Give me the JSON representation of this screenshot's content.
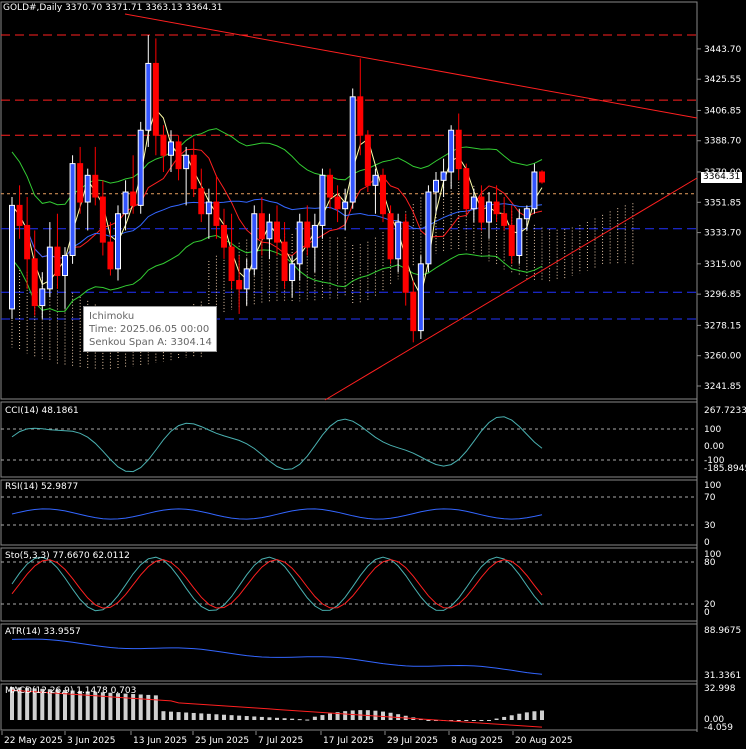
{
  "header": {
    "symbol_tf": "GOLD#,Daily",
    "ohlc": "3370.70 3371.71 3363.13 3364.31"
  },
  "current_price": "3364.31",
  "tooltip": {
    "title": "Ichimoku",
    "time": "Time: 2025.06.05 00:00",
    "value": "Senkou Span A: 3304.14"
  },
  "colors": {
    "background": "#000000",
    "bull_candle": "#ffffff",
    "bear_candle": "#ff0000",
    "up_body": "#3355ff",
    "trendline": "#ff2020",
    "level_red": "#ff2020",
    "level_blue": "#2233ff",
    "cloud": "#e8c8a8",
    "indicator_blue": "#3366ff",
    "indicator_red": "#ff2020",
    "cci": "#4ab0b0",
    "macd_hist": "#d0d0d0"
  },
  "panes": {
    "cci": {
      "label": "CCI(14) 48.1861",
      "scale": [
        "267.7233",
        "100",
        "0.00",
        "-100",
        "-185.8945"
      ]
    },
    "rsi": {
      "label": "RSI(14) 52.9877",
      "scale": [
        "100",
        "70",
        "30",
        "0"
      ]
    },
    "sto": {
      "label": "Sto(5,3,3) 77.6670 62.0112",
      "scale": [
        "100",
        "80",
        "20",
        "0"
      ]
    },
    "atr": {
      "label": "ATR(14) 33.9557",
      "scale": [
        "88.9675",
        "31.3361"
      ]
    },
    "macd": {
      "label": "MACD(12,26,9) 1.1478 0.703",
      "scale": [
        "32.998",
        "0.00",
        "-4.059"
      ]
    }
  },
  "chart_data": {
    "type": "candlestick",
    "price_axis": [
      "3443.70",
      "3425.55",
      "3406.85",
      "3388.70",
      "3370.00",
      "3351.85",
      "3333.70",
      "3315.00",
      "3296.85",
      "3278.15",
      "3260.00",
      "3241.85"
    ],
    "ylim": [
      3241.85,
      3461.0
    ],
    "x_labels": [
      "22 May 2025",
      "3 Jun 2025",
      "13 Jun 2025",
      "25 Jun 2025",
      "7 Jul 2025",
      "17 Jul 2025",
      "29 Jul 2025",
      "8 Aug 2025",
      "20 Aug 2025"
    ],
    "horizontal_levels": [
      {
        "price": 3452.0,
        "color": "red"
      },
      {
        "price": 3413.0,
        "color": "red"
      },
      {
        "price": 3392.0,
        "color": "red"
      },
      {
        "price": 3357.0,
        "color": "orange"
      },
      {
        "price": 3336.0,
        "color": "blue"
      },
      {
        "price": 3298.0,
        "color": "blue"
      },
      {
        "price": 3282.0,
        "color": "blue"
      }
    ],
    "candles": [
      [
        3288,
        3355,
        3282,
        3350
      ],
      [
        3350,
        3362,
        3330,
        3338
      ],
      [
        3338,
        3355,
        3300,
        3318
      ],
      [
        3318,
        3335,
        3284,
        3290
      ],
      [
        3290,
        3310,
        3282,
        3300
      ],
      [
        3300,
        3340,
        3295,
        3325
      ],
      [
        3325,
        3345,
        3300,
        3308
      ],
      [
        3308,
        3325,
        3288,
        3320
      ],
      [
        3320,
        3380,
        3315,
        3375
      ],
      [
        3375,
        3385,
        3345,
        3352
      ],
      [
        3352,
        3372,
        3335,
        3368
      ],
      [
        3368,
        3385,
        3350,
        3355
      ],
      [
        3355,
        3365,
        3320,
        3328
      ],
      [
        3328,
        3340,
        3308,
        3312
      ],
      [
        3312,
        3350,
        3305,
        3345
      ],
      [
        3345,
        3365,
        3335,
        3358
      ],
      [
        3358,
        3380,
        3345,
        3350
      ],
      [
        3350,
        3400,
        3345,
        3395
      ],
      [
        3395,
        3452,
        3385,
        3435
      ],
      [
        3435,
        3450,
        3380,
        3392
      ],
      [
        3392,
        3398,
        3370,
        3380
      ],
      [
        3380,
        3395,
        3370,
        3388
      ],
      [
        3388,
        3392,
        3365,
        3372
      ],
      [
        3372,
        3385,
        3350,
        3380
      ],
      [
        3380,
        3390,
        3355,
        3360
      ],
      [
        3360,
        3372,
        3340,
        3345
      ],
      [
        3345,
        3360,
        3330,
        3352
      ],
      [
        3352,
        3368,
        3330,
        3338
      ],
      [
        3338,
        3348,
        3318,
        3325
      ],
      [
        3325,
        3345,
        3300,
        3305
      ],
      [
        3305,
        3320,
        3285,
        3300
      ],
      [
        3300,
        3318,
        3290,
        3312
      ],
      [
        3312,
        3350,
        3308,
        3345
      ],
      [
        3345,
        3355,
        3320,
        3330
      ],
      [
        3330,
        3345,
        3318,
        3340
      ],
      [
        3340,
        3350,
        3320,
        3328
      ],
      [
        3328,
        3340,
        3300,
        3305
      ],
      [
        3305,
        3320,
        3295,
        3315
      ],
      [
        3315,
        3345,
        3305,
        3340
      ],
      [
        3340,
        3350,
        3320,
        3325
      ],
      [
        3325,
        3345,
        3310,
        3338
      ],
      [
        3338,
        3372,
        3330,
        3368
      ],
      [
        3368,
        3372,
        3348,
        3355
      ],
      [
        3355,
        3362,
        3340,
        3348
      ],
      [
        3348,
        3360,
        3335,
        3352
      ],
      [
        3352,
        3420,
        3348,
        3415
      ],
      [
        3415,
        3438,
        3380,
        3392
      ],
      [
        3392,
        3395,
        3358,
        3362
      ],
      [
        3362,
        3372,
        3345,
        3368
      ],
      [
        3368,
        3372,
        3340,
        3345
      ],
      [
        3345,
        3350,
        3315,
        3318
      ],
      [
        3318,
        3345,
        3310,
        3340
      ],
      [
        3340,
        3345,
        3290,
        3298
      ],
      [
        3298,
        3305,
        3268,
        3275
      ],
      [
        3275,
        3320,
        3270,
        3315
      ],
      [
        3315,
        3362,
        3310,
        3358
      ],
      [
        3358,
        3370,
        3345,
        3365
      ],
      [
        3365,
        3378,
        3355,
        3370
      ],
      [
        3370,
        3398,
        3360,
        3395
      ],
      [
        3395,
        3405,
        3365,
        3372
      ],
      [
        3372,
        3375,
        3345,
        3348
      ],
      [
        3348,
        3360,
        3340,
        3355
      ],
      [
        3355,
        3362,
        3335,
        3340
      ],
      [
        3340,
        3358,
        3330,
        3352
      ],
      [
        3352,
        3362,
        3340,
        3345
      ],
      [
        3345,
        3355,
        3335,
        3338
      ],
      [
        3338,
        3350,
        3315,
        3320
      ],
      [
        3320,
        3348,
        3315,
        3342
      ],
      [
        3342,
        3350,
        3335,
        3348
      ],
      [
        3348,
        3375,
        3345,
        3370
      ],
      [
        3370,
        3371,
        3363,
        3364
      ]
    ]
  }
}
